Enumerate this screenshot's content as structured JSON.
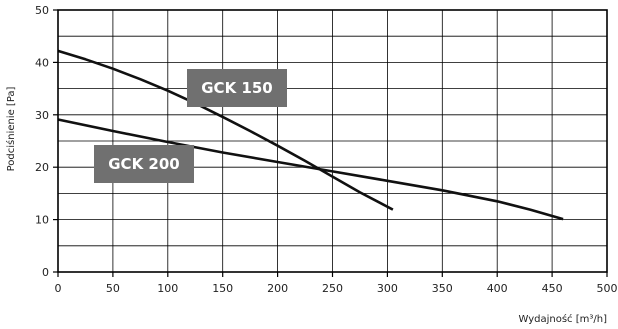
{
  "chart_data": {
    "type": "line",
    "title": "",
    "xlabel": "Wydajność [m³/h]",
    "ylabel": "Podciśnienie [Pa]",
    "xlim": [
      0,
      500
    ],
    "ylim": [
      0,
      50
    ],
    "x_ticks": [
      0,
      50,
      100,
      150,
      200,
      250,
      300,
      350,
      400,
      450,
      500
    ],
    "y_ticks": [
      0,
      10,
      20,
      30,
      40,
      50
    ],
    "grid": {
      "horizontal_step": 5,
      "vertical_step": 50
    },
    "series": [
      {
        "name": "GCK 150",
        "label_box_color": "#707070",
        "x": [
          0,
          25,
          50,
          75,
          100,
          125,
          150,
          175,
          200,
          225,
          250,
          275,
          305
        ],
        "y": [
          42.2,
          40.6,
          38.8,
          36.8,
          34.6,
          32.2,
          29.6,
          26.9,
          24.1,
          21.2,
          18.2,
          15.2,
          11.9
        ]
      },
      {
        "name": "GCK 200",
        "label_box_color": "#707070",
        "x": [
          0,
          50,
          100,
          150,
          200,
          250,
          300,
          350,
          400,
          430,
          460
        ],
        "y": [
          29.1,
          26.9,
          24.8,
          22.8,
          21.0,
          19.2,
          17.4,
          15.6,
          13.5,
          11.9,
          10.1
        ]
      }
    ]
  }
}
